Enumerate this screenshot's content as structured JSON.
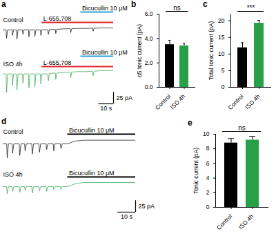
{
  "chart_data": [
    {
      "panel": "a",
      "type": "line",
      "title": "Control",
      "x": [
        0,
        2,
        2.3,
        3,
        6,
        6.3,
        7,
        9,
        9.3,
        10,
        13,
        13.3,
        14,
        17,
        17.3,
        18,
        21,
        21.3,
        22,
        25,
        25.3,
        26,
        30,
        30.3,
        31,
        35,
        35.3,
        36,
        40,
        45,
        45.3,
        46,
        50,
        55,
        60,
        60.3,
        61,
        65,
        70,
        74
      ],
      "values": [
        0,
        0,
        -18,
        0,
        0,
        -12,
        0,
        0,
        -20,
        0,
        0,
        -10,
        0,
        0,
        -15,
        0,
        0,
        -14,
        0,
        0,
        -12,
        0,
        0,
        -10,
        0.5,
        1,
        -8,
        1,
        2,
        2.5,
        -6,
        2.5,
        3,
        3,
        3.5,
        -3,
        3.5,
        4,
        4,
        4
      ],
      "color": "#000000",
      "xlim": [
        0,
        74
      ],
      "ylim": [
        -30,
        10
      ],
      "tick_labels": false,
      "annotations": [
        {
          "text": "Bicucullin 10 μM",
          "x": [
            52,
            74
          ],
          "color": "#2aa6df"
        },
        {
          "text": "L-655,708",
          "x": [
            26,
            74
          ],
          "color": "#e3262d"
        }
      ]
    },
    {
      "type": "line",
      "title": "ISO 4h",
      "x": [
        0,
        2,
        2.3,
        3,
        6,
        6.3,
        7,
        9,
        9.3,
        10,
        13,
        13.3,
        14,
        17,
        17.3,
        18,
        21,
        21.3,
        22,
        25,
        25.3,
        26,
        30,
        30.3,
        31,
        35,
        35.3,
        36,
        40,
        45,
        45.3,
        46,
        50,
        55,
        60,
        60.3,
        61,
        65,
        70,
        74
      ],
      "values": [
        0,
        0,
        -40,
        0,
        0,
        -25,
        0,
        0,
        -35,
        0,
        0,
        -20,
        0,
        0,
        -30,
        0,
        0,
        -28,
        0,
        0,
        -22,
        0,
        0,
        -15,
        1,
        2,
        -12,
        2,
        3,
        4,
        -8,
        4,
        5,
        5,
        6,
        -4,
        6,
        7,
        7,
        7
      ],
      "color": "#27a048",
      "xlim": [
        0,
        74
      ],
      "ylim": [
        -50,
        10
      ],
      "tick_labels": false,
      "annotations": [
        {
          "text": "Bicucullin 10 μM",
          "x": [
            52,
            74
          ],
          "color": "#2aa6df"
        },
        {
          "text": "L-655,708",
          "x": [
            26,
            74
          ],
          "color": "#e3262d"
        }
      ],
      "scale_bar": {
        "x": 10,
        "x_label": "10 s",
        "y": 25,
        "y_label": "25 pA"
      }
    },
    {
      "panel": "b",
      "type": "bar",
      "categories": [
        "Control",
        "ISO 4h"
      ],
      "values": [
        3.5,
        3.4
      ],
      "errors": [
        0.35,
        0.2
      ],
      "colors": [
        "#000000",
        "#27a048"
      ],
      "y_label": "α5 tonic current (pA)",
      "ylim": [
        0,
        6
      ],
      "yticks": [
        0,
        2,
        4,
        6
      ],
      "annotation": "ns"
    },
    {
      "panel": "c",
      "type": "bar",
      "categories": [
        "Control",
        "ISO 4h"
      ],
      "values": [
        11.9,
        19.3
      ],
      "errors": [
        1.5,
        0.8
      ],
      "colors": [
        "#000000",
        "#27a048"
      ],
      "y_label": "Total tonic current (pA)",
      "ylim": [
        0,
        22
      ],
      "yticks": [
        0,
        5,
        10,
        15,
        20
      ],
      "annotation": "***"
    },
    {
      "panel": "d",
      "type": "line",
      "title": "Control",
      "x": [
        0,
        2,
        2.3,
        3,
        5,
        5.3,
        6,
        9,
        9.3,
        10,
        12,
        12.3,
        13,
        16,
        16.3,
        17,
        20,
        20.3,
        21,
        24,
        24.3,
        25,
        28,
        28.3,
        29,
        32,
        32.3,
        33,
        36,
        38,
        40,
        45,
        50,
        55,
        60,
        65,
        70,
        74
      ],
      "values": [
        0,
        0,
        -30,
        0,
        0,
        -20,
        0,
        0,
        -25,
        0,
        0,
        -15,
        0,
        0,
        -22,
        0,
        0,
        -18,
        0,
        0,
        -12,
        0,
        0,
        -15,
        0,
        0,
        -10,
        0,
        0,
        3,
        6,
        8,
        8,
        8,
        8,
        8,
        8,
        8
      ],
      "color": "#000000",
      "xlim": [
        0,
        74
      ],
      "ylim": [
        -40,
        15
      ],
      "tick_labels": false,
      "annotations": [
        {
          "text": "Bicucullin 10 μM",
          "x": [
            36,
            74
          ],
          "color": "#000000"
        }
      ]
    },
    {
      "type": "line",
      "title": "ISO 4h",
      "x": [
        0,
        2,
        2.3,
        3,
        5,
        5.3,
        6,
        9,
        9.3,
        10,
        12,
        12.3,
        13,
        16,
        16.3,
        17,
        20,
        20.3,
        21,
        24,
        24.3,
        25,
        28,
        28.3,
        29,
        32,
        32.3,
        33,
        36,
        38,
        40,
        45,
        50,
        55,
        60,
        65,
        70,
        74
      ],
      "values": [
        0,
        0,
        -15,
        0,
        0,
        -10,
        0,
        0,
        -12,
        0,
        0,
        -8,
        0,
        0,
        -14,
        0,
        0,
        -9,
        0,
        0,
        -10,
        0,
        0,
        -7,
        0,
        0,
        -6,
        0,
        0,
        3,
        6,
        9,
        9,
        9,
        9,
        9,
        9,
        9
      ],
      "color": "#27a048",
      "xlim": [
        0,
        74
      ],
      "ylim": [
        -40,
        15
      ],
      "tick_labels": false,
      "annotations": [
        {
          "text": "Bicucullin 10 μM",
          "x": [
            36,
            74
          ],
          "color": "#000000"
        }
      ],
      "scale_bar": {
        "x": 10,
        "x_label": "10 s",
        "y": 25,
        "y_label": "25 pA"
      }
    },
    {
      "panel": "e",
      "type": "bar",
      "categories": [
        "Control",
        "ISO 4h"
      ],
      "values": [
        8.8,
        9.2
      ],
      "errors": [
        0.6,
        0.5
      ],
      "colors": [
        "#000000",
        "#27a048"
      ],
      "y_label": "Tonic current (pA)",
      "ylim": [
        0,
        10
      ],
      "yticks": [
        0,
        2,
        4,
        6,
        8,
        10
      ],
      "annotation": "ns"
    }
  ]
}
